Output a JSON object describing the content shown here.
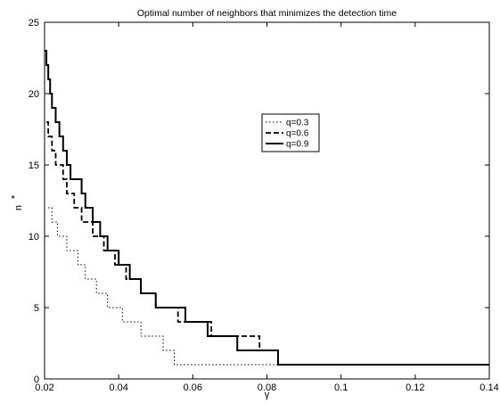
{
  "chart_data": {
    "type": "line",
    "title": "Optimal number of neighbors that minimizes the detection time",
    "xlabel": "γ",
    "ylabel": "n",
    "ylabel_superscript": "*",
    "xlim": [
      0.02,
      0.14
    ],
    "ylim": [
      0,
      25
    ],
    "xticks": [
      0.02,
      0.04,
      0.06,
      0.08,
      0.1,
      0.12,
      0.14
    ],
    "xtick_labels": [
      "0.02",
      "0.04",
      "0.06",
      "0.08",
      "0.1",
      "0.12",
      "0.14"
    ],
    "yticks": [
      0,
      5,
      10,
      15,
      20,
      25
    ],
    "ytick_labels": [
      "0",
      "5",
      "10",
      "15",
      "20",
      "25"
    ],
    "grid": false,
    "legend": {
      "position": "center-right"
    },
    "series": [
      {
        "name": "q=0.3",
        "style": "dotted",
        "color": "#000000",
        "x": [
          0.021,
          0.022,
          0.023,
          0.0235,
          0.025,
          0.026,
          0.027,
          0.029,
          0.03,
          0.031,
          0.033,
          0.034,
          0.036,
          0.037,
          0.04,
          0.041,
          0.044,
          0.046,
          0.051,
          0.052,
          0.055,
          0.083,
          0.14
        ],
        "y": [
          12,
          11,
          11,
          10,
          10,
          9,
          9,
          8,
          8,
          7,
          7,
          6,
          6,
          5,
          5,
          4,
          4,
          3,
          3,
          2,
          1,
          1,
          1
        ]
      },
      {
        "name": "q=0.6",
        "style": "dashed",
        "color": "#000000",
        "x": [
          0.0205,
          0.021,
          0.022,
          0.023,
          0.024,
          0.025,
          0.026,
          0.027,
          0.028,
          0.029,
          0.03,
          0.031,
          0.033,
          0.034,
          0.036,
          0.037,
          0.039,
          0.04,
          0.042,
          0.043,
          0.046,
          0.047,
          0.05,
          0.052,
          0.056,
          0.058,
          0.065,
          0.069,
          0.078,
          0.082,
          0.083,
          0.14
        ],
        "y": [
          18,
          17,
          16,
          15,
          15,
          14,
          13,
          13,
          12,
          12,
          11,
          11,
          10,
          10,
          9,
          9,
          8,
          8,
          7,
          7,
          6,
          6,
          5,
          5,
          4,
          4,
          3,
          3,
          2,
          2,
          1,
          1
        ],
        "steps": [
          [
            0.0205,
            18
          ],
          [
            0.021,
            17
          ],
          [
            0.022,
            16
          ],
          [
            0.023,
            15
          ],
          [
            0.025,
            14
          ],
          [
            0.026,
            13
          ],
          [
            0.028,
            12
          ],
          [
            0.03,
            11
          ],
          [
            0.033,
            10
          ],
          [
            0.036,
            9
          ],
          [
            0.039,
            8
          ],
          [
            0.042,
            7
          ],
          [
            0.046,
            6
          ],
          [
            0.05,
            5
          ],
          [
            0.056,
            4
          ],
          [
            0.065,
            3
          ],
          [
            0.078,
            2
          ],
          [
            0.083,
            1
          ],
          [
            0.14,
            1
          ]
        ]
      },
      {
        "name": "q=0.9",
        "style": "solid",
        "color": "#000000",
        "steps": [
          [
            0.02,
            23
          ],
          [
            0.0205,
            22
          ],
          [
            0.021,
            21
          ],
          [
            0.0215,
            20
          ],
          [
            0.022,
            19
          ],
          [
            0.023,
            18
          ],
          [
            0.024,
            17
          ],
          [
            0.025,
            16
          ],
          [
            0.026,
            15
          ],
          [
            0.027,
            14
          ],
          [
            0.028,
            13
          ],
          [
            0.03,
            12
          ],
          [
            0.031,
            11
          ],
          [
            0.033,
            10
          ],
          [
            0.035,
            9
          ],
          [
            0.038,
            8
          ],
          [
            0.04,
            7
          ],
          [
            0.043,
            6
          ],
          [
            0.046,
            5
          ],
          [
            0.05,
            4
          ],
          [
            0.054,
            3
          ],
          [
            0.058,
            2
          ],
          [
            0.064,
            1
          ],
          [
            0.072,
            1
          ],
          [
            0.083,
            1
          ],
          [
            0.096,
            1
          ],
          [
            0.106,
            1
          ],
          [
            0.14,
            1
          ]
        ],
        "levels": [
          [
            0.02,
            23
          ],
          [
            0.0205,
            22
          ],
          [
            0.021,
            21
          ],
          [
            0.0215,
            20
          ],
          [
            0.022,
            19
          ],
          [
            0.023,
            18
          ],
          [
            0.024,
            17
          ],
          [
            0.025,
            16
          ],
          [
            0.026,
            15
          ],
          [
            0.027,
            14
          ],
          [
            0.028,
            14
          ],
          [
            0.03,
            13
          ],
          [
            0.031,
            12
          ],
          [
            0.033,
            11
          ],
          [
            0.035,
            10
          ],
          [
            0.037,
            9
          ],
          [
            0.04,
            8
          ],
          [
            0.043,
            7
          ],
          [
            0.046,
            6
          ],
          [
            0.05,
            5
          ],
          [
            0.054,
            5
          ],
          [
            0.058,
            4
          ],
          [
            0.064,
            3
          ],
          [
            0.072,
            2
          ],
          [
            0.083,
            1
          ],
          [
            0.096,
            1
          ],
          [
            0.106,
            1
          ],
          [
            0.14,
            1
          ]
        ]
      }
    ]
  }
}
